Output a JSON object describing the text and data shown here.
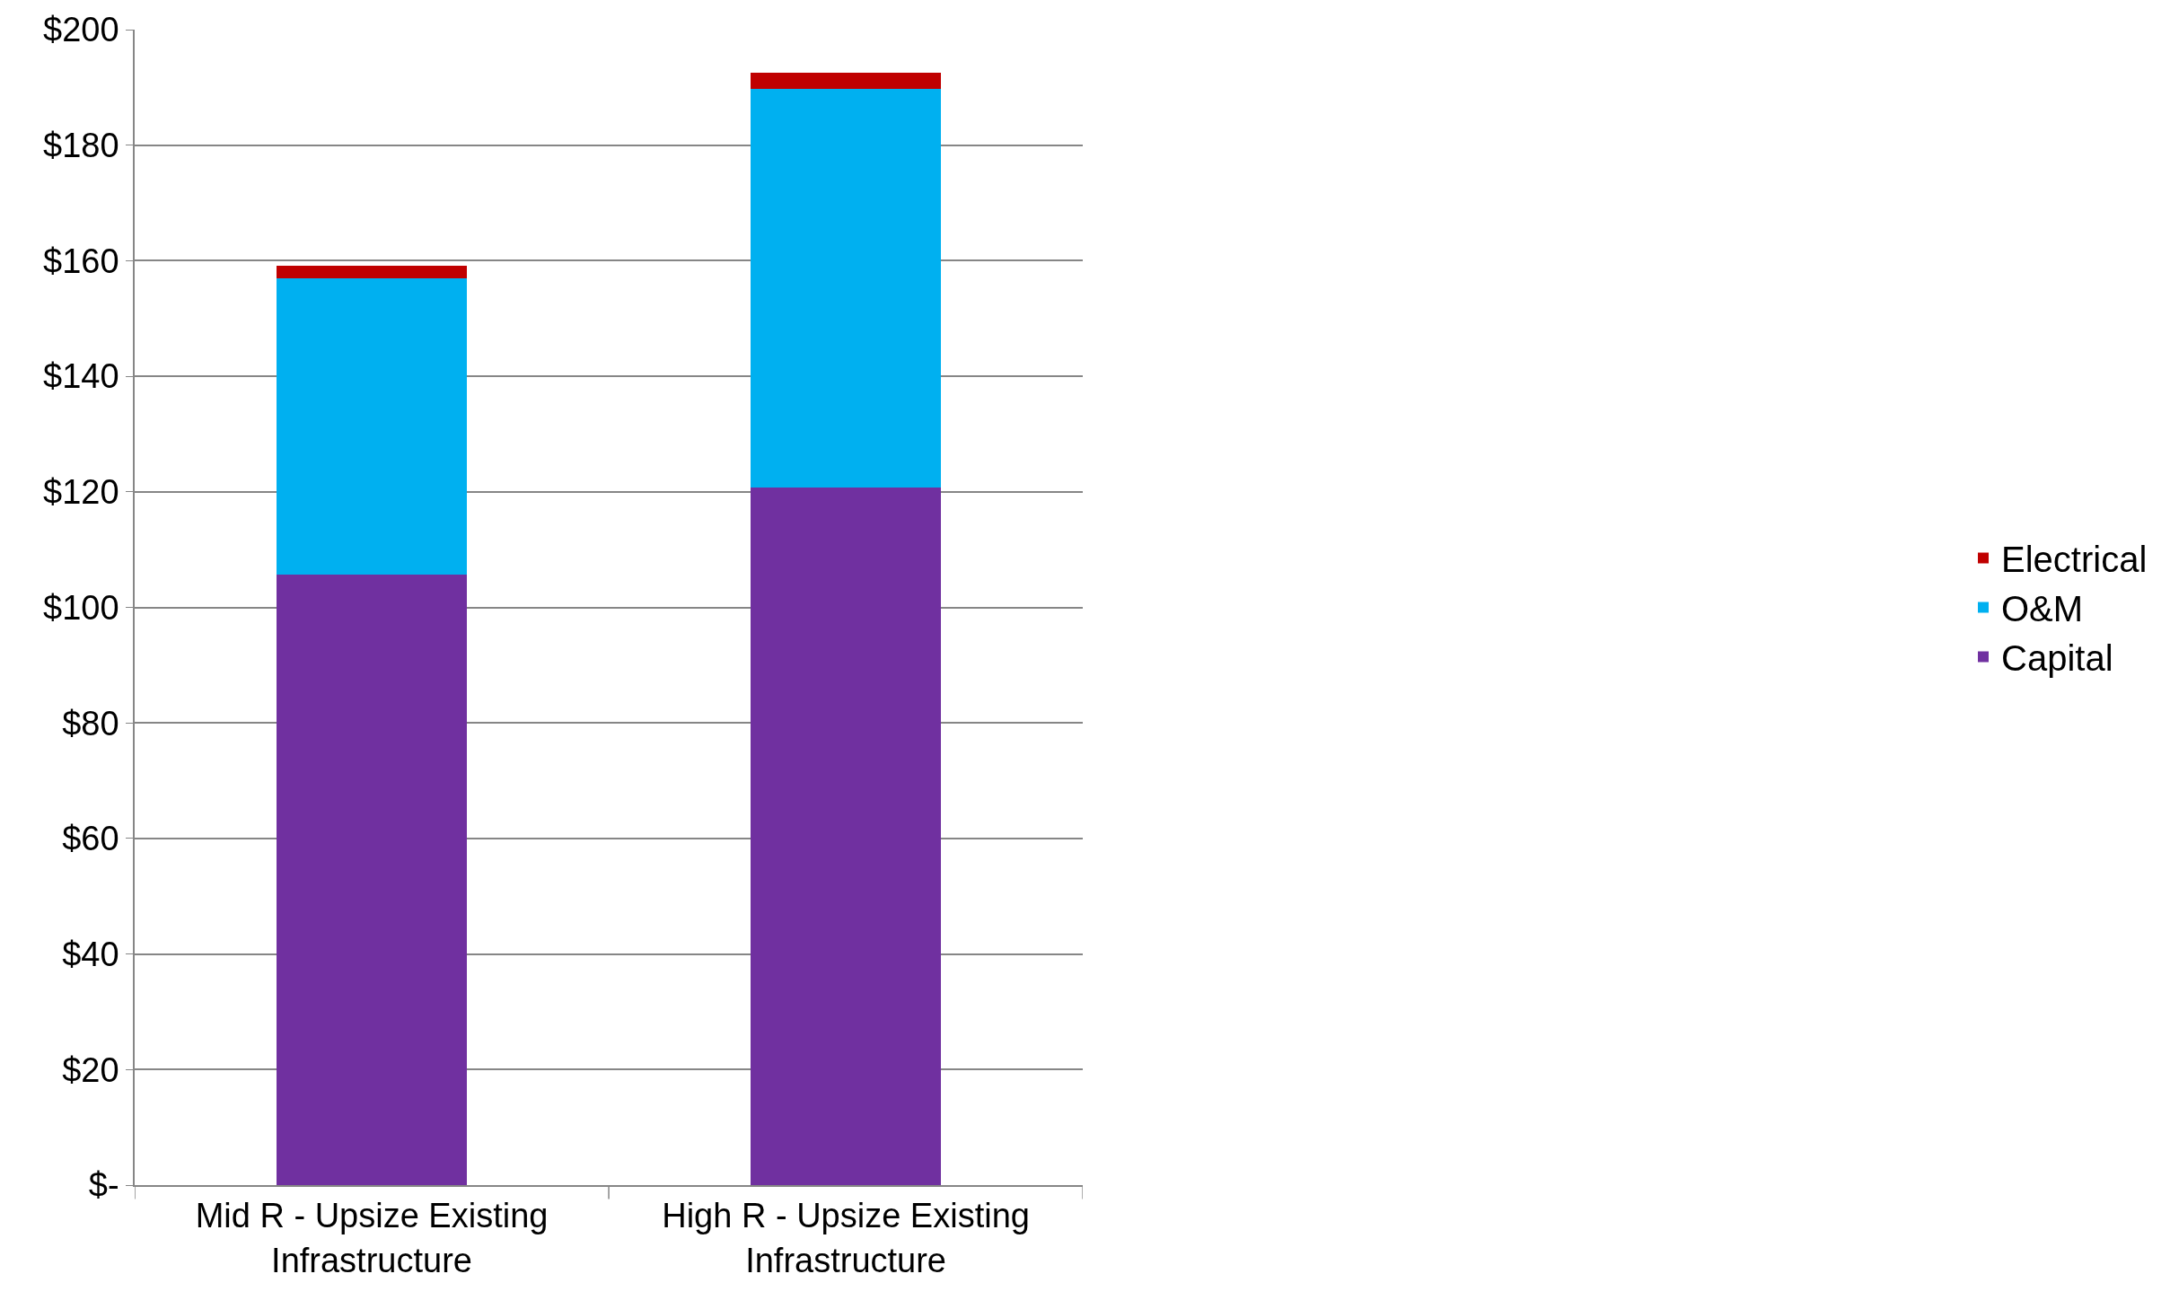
{
  "chart_data": {
    "type": "bar",
    "stacked": true,
    "categories": [
      "Mid R - Upsize Existing Infrastructure",
      "High R - Upsize Existing Infrastructure"
    ],
    "series": [
      {
        "name": "Capital",
        "color": "#7030a0",
        "values": [
          105.7,
          120.7
        ]
      },
      {
        "name": "O&M",
        "color": "#00b0f0",
        "values": [
          51.3,
          69.1
        ]
      },
      {
        "name": "Electrical",
        "color": "#c00000",
        "values": [
          2.1,
          2.8
        ]
      }
    ],
    "ylim": [
      0,
      200
    ],
    "yticks": [
      {
        "value": 0,
        "label": "$-"
      },
      {
        "value": 20,
        "label": "$20"
      },
      {
        "value": 40,
        "label": "$40"
      },
      {
        "value": 60,
        "label": "$60"
      },
      {
        "value": 80,
        "label": "$80"
      },
      {
        "value": 100,
        "label": "$100"
      },
      {
        "value": 120,
        "label": "$120"
      },
      {
        "value": 140,
        "label": "$140"
      },
      {
        "value": 160,
        "label": "$160"
      },
      {
        "value": 180,
        "label": "$180"
      },
      {
        "value": 200,
        "label": "$200"
      }
    ],
    "grid": "y",
    "legend": "right"
  }
}
